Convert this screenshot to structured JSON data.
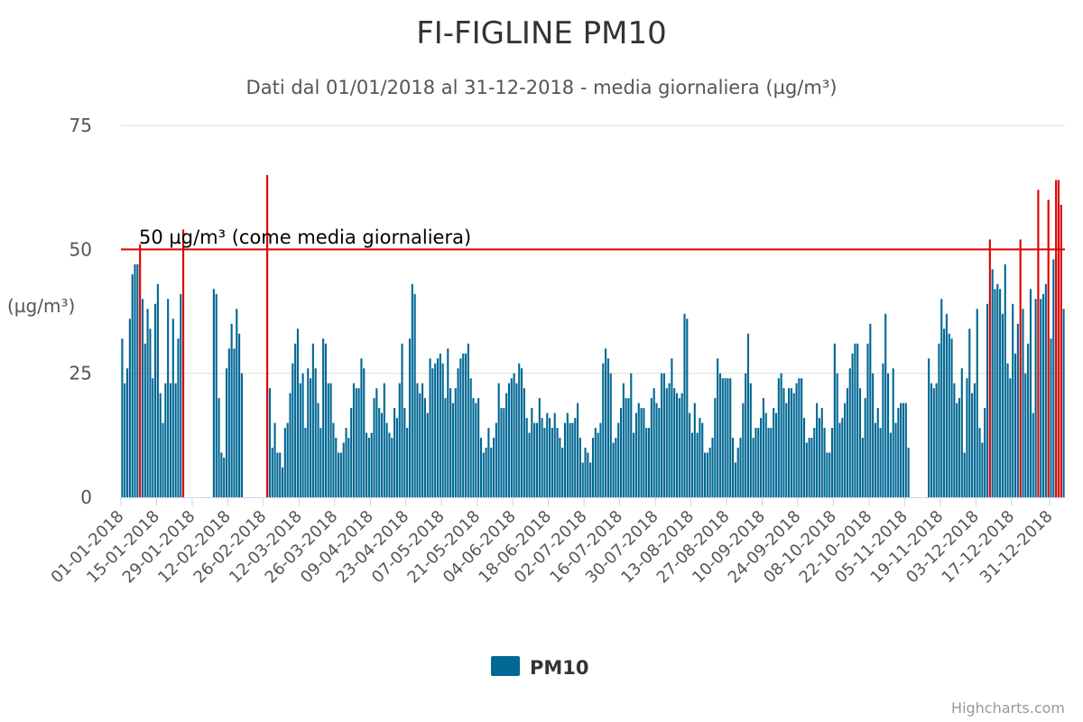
{
  "chart_data": {
    "type": "bar",
    "title": "FI-FIGLINE PM10",
    "subtitle": "Dati dal 01/01/2018 al 31-12-2018 - media giornaliera (µg/m³)",
    "ylabel": "(µg/m³)",
    "ylim": [
      0,
      75
    ],
    "yticks": [
      0,
      25,
      50,
      75
    ],
    "grid": true,
    "x_start": "01-01-2018",
    "x_end": "31-12-2018",
    "x_tick_labels": [
      "01-01-2018",
      "15-01-2018",
      "29-01-2018",
      "12-02-2018",
      "26-02-2018",
      "12-03-2018",
      "26-03-2018",
      "09-04-2018",
      "23-04-2018",
      "07-05-2018",
      "21-05-2018",
      "04-06-2018",
      "18-06-2018",
      "02-07-2018",
      "16-07-2018",
      "30-07-2018",
      "13-08-2018",
      "27-08-2018",
      "10-09-2018",
      "24-09-2018",
      "08-10-2018",
      "22-10-2018",
      "05-11-2018",
      "19-11-2018",
      "03-12-2018",
      "17-12-2018",
      "31-12-2018"
    ],
    "threshold": {
      "value": 50,
      "label": "50 µg/m³ (come media giornaliera)",
      "color": "#dd0000"
    },
    "series": [
      {
        "name": "PM10",
        "color": "#006894",
        "exceedance_color": "#dd0000",
        "values": [
          32,
          23,
          26,
          36,
          45,
          47,
          47,
          51,
          40,
          31,
          38,
          34,
          24,
          39,
          43,
          21,
          15,
          23,
          40,
          23,
          36,
          23,
          32,
          41,
          54,
          0,
          0,
          0,
          0,
          0,
          0,
          0,
          0,
          0,
          0,
          0,
          42,
          41,
          20,
          9,
          8,
          26,
          30,
          35,
          30,
          38,
          33,
          25,
          0,
          0,
          0,
          0,
          0,
          0,
          0,
          0,
          0,
          65,
          22,
          10,
          15,
          9,
          9,
          6,
          14,
          15,
          21,
          27,
          31,
          34,
          23,
          25,
          14,
          26,
          24,
          31,
          26,
          19,
          14,
          32,
          31,
          23,
          23,
          15,
          12,
          9,
          9,
          11,
          14,
          12,
          18,
          23,
          22,
          22,
          28,
          26,
          13,
          12,
          13,
          20,
          22,
          18,
          17,
          23,
          15,
          13,
          12,
          18,
          16,
          23,
          31,
          18,
          14,
          32,
          43,
          41,
          23,
          21,
          23,
          20,
          17,
          28,
          26,
          27,
          28,
          29,
          27,
          20,
          30,
          22,
          19,
          22,
          26,
          28,
          29,
          29,
          31,
          24,
          20,
          19,
          20,
          12,
          9,
          10,
          14,
          10,
          12,
          15,
          23,
          18,
          18,
          21,
          23,
          24,
          25,
          23,
          27,
          26,
          22,
          16,
          13,
          18,
          15,
          15,
          20,
          16,
          14,
          17,
          16,
          14,
          17,
          14,
          12,
          10,
          15,
          17,
          15,
          15,
          16,
          19,
          12,
          7,
          10,
          9,
          7,
          12,
          14,
          13,
          15,
          27,
          30,
          28,
          25,
          11,
          12,
          15,
          18,
          23,
          20,
          20,
          25,
          13,
          17,
          19,
          18,
          18,
          14,
          14,
          20,
          22,
          19,
          18,
          25,
          25,
          22,
          23,
          28,
          22,
          21,
          20,
          21,
          37,
          36,
          17,
          13,
          19,
          13,
          16,
          15,
          9,
          9,
          10,
          12,
          20,
          28,
          25,
          24,
          24,
          24,
          24,
          12,
          7,
          10,
          12,
          19,
          25,
          33,
          23,
          12,
          14,
          14,
          16,
          20,
          17,
          14,
          14,
          18,
          17,
          24,
          25,
          22,
          19,
          22,
          22,
          21,
          23,
          24,
          24,
          16,
          11,
          12,
          12,
          14,
          19,
          16,
          18,
          14,
          9,
          9,
          14,
          31,
          25,
          15,
          16,
          19,
          22,
          26,
          29,
          31,
          31,
          22,
          12,
          20,
          31,
          35,
          25,
          15,
          18,
          14,
          27,
          37,
          25,
          13,
          26,
          15,
          18,
          19,
          19,
          19,
          10,
          0,
          0,
          0,
          0,
          0,
          0,
          0,
          28,
          23,
          22,
          23,
          31,
          40,
          34,
          37,
          33,
          32,
          23,
          19,
          20,
          26,
          9,
          24,
          34,
          21,
          23,
          38,
          14,
          11,
          18,
          39,
          52,
          46,
          42,
          43,
          42,
          37,
          47,
          27,
          24,
          39,
          29,
          35,
          52,
          38,
          25,
          31,
          42,
          17,
          40,
          62,
          40,
          41,
          43,
          60,
          32,
          48,
          64,
          64,
          59,
          38
        ]
      }
    ]
  },
  "legend": {
    "label": "PM10",
    "position": "bottom-center"
  },
  "credits": "Highcharts.com"
}
